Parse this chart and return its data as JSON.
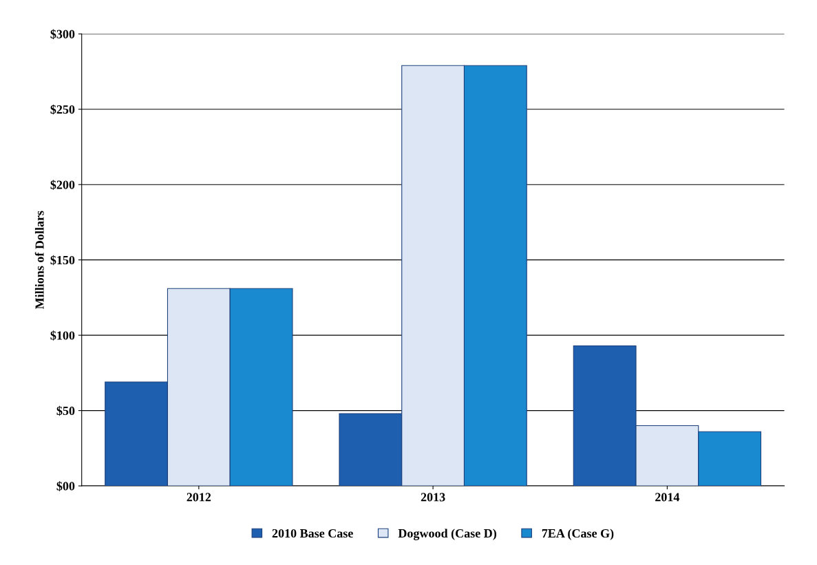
{
  "chart_data": {
    "type": "bar",
    "ylabel": "Millions of Dollars",
    "categories": [
      "2012",
      "2013",
      "2014"
    ],
    "series": [
      {
        "name": "2010 Base Case",
        "color": "#1f5fb0",
        "values": [
          69,
          48,
          93
        ]
      },
      {
        "name": "Dogwood (Case D)",
        "color": "#dce6f5",
        "values": [
          131,
          279,
          40
        ]
      },
      {
        "name": "7EA (Case G)",
        "color": "#1a8ad0",
        "values": [
          131,
          279,
          36
        ]
      }
    ],
    "ylim": [
      0,
      300
    ],
    "yticks": [
      {
        "value": 0,
        "label": "$00"
      },
      {
        "value": 50,
        "label": "$50"
      },
      {
        "value": 100,
        "label": "$100"
      },
      {
        "value": 150,
        "label": "$150"
      },
      {
        "value": 200,
        "label": "$200"
      },
      {
        "value": 250,
        "label": "$250"
      },
      {
        "value": 300,
        "label": "$300"
      }
    ],
    "grid": "y",
    "legend": "bottom"
  }
}
